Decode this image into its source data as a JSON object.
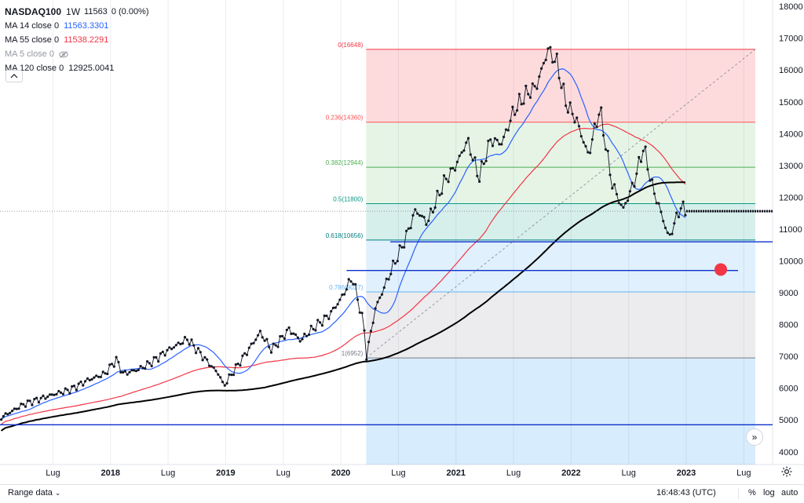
{
  "legend": {
    "symbol": "NASDAQ100",
    "timeframe": "1W",
    "price": "11563",
    "change": "0 (0.00%)",
    "ma": [
      {
        "label": "MA 14 close 0",
        "value": "11563.3301",
        "color": "#2962ff",
        "hidden": false
      },
      {
        "label": "MA 55 close 0",
        "value": "11538.2291",
        "color": "#f23645",
        "hidden": false
      },
      {
        "label": "MA 5 close 0",
        "value": "",
        "color": "#9598a1",
        "hidden": true,
        "icon": "eye-off-icon"
      },
      {
        "label": "MA 120 close 0",
        "value": "12925.0041",
        "color": "#000000",
        "hidden": false
      }
    ]
  },
  "bottom_bar": {
    "range_label": "Range data",
    "clock": "16:48:43 (UTC)",
    "percent_label": "%",
    "log_label": "log",
    "auto_label": "auto"
  },
  "chart_data": {
    "type": "line",
    "timeframe": "1W",
    "x_ticks": [
      "Lug",
      "2018",
      "Lug",
      "2019",
      "Lug",
      "2020",
      "Lug",
      "2021",
      "Lug",
      "2022",
      "Lug",
      "2023",
      "Lug"
    ],
    "x_tick_dates": [
      2017.5,
      2018.0,
      2018.5,
      2019.0,
      2019.5,
      2020.0,
      2020.5,
      2021.0,
      2021.5,
      2022.0,
      2022.5,
      2023.0,
      2023.5
    ],
    "y_ticks": [
      4000,
      5000,
      6000,
      7000,
      8000,
      9000,
      10000,
      11000,
      12000,
      13000,
      14000,
      15000,
      16000,
      17000,
      18000
    ],
    "ylim": [
      3600,
      18200
    ],
    "xlim": [
      2017.04,
      2023.75
    ],
    "price": [
      [
        2017.05,
        5080
      ],
      [
        2017.25,
        5500
      ],
      [
        2017.5,
        5800
      ],
      [
        2017.65,
        5950
      ],
      [
        2017.8,
        6250
      ],
      [
        2017.95,
        6450
      ],
      [
        2018.05,
        6900
      ],
      [
        2018.11,
        6450
      ],
      [
        2018.25,
        6600
      ],
      [
        2018.35,
        6800
      ],
      [
        2018.5,
        7200
      ],
      [
        2018.67,
        7550
      ],
      [
        2018.8,
        7000
      ],
      [
        2018.95,
        6400
      ],
      [
        2018.98,
        6050
      ],
      [
        2019.1,
        6700
      ],
      [
        2019.3,
        7750
      ],
      [
        2019.4,
        7200
      ],
      [
        2019.55,
        7850
      ],
      [
        2019.65,
        7500
      ],
      [
        2019.75,
        7850
      ],
      [
        2019.9,
        8300
      ],
      [
        2020.0,
        8800
      ],
      [
        2020.1,
        9500
      ],
      [
        2020.2,
        8000
      ],
      [
        2020.22,
        6952
      ],
      [
        2020.3,
        8500
      ],
      [
        2020.45,
        9800
      ],
      [
        2020.55,
        10600
      ],
      [
        2020.65,
        11600
      ],
      [
        2020.75,
        11200
      ],
      [
        2020.9,
        12500
      ],
      [
        2021.0,
        13000
      ],
      [
        2021.1,
        13800
      ],
      [
        2021.2,
        12600
      ],
      [
        2021.3,
        13800
      ],
      [
        2021.4,
        13700
      ],
      [
        2021.5,
        14700
      ],
      [
        2021.6,
        15200
      ],
      [
        2021.7,
        15500
      ],
      [
        2021.8,
        16648
      ],
      [
        2021.88,
        16200
      ],
      [
        2021.95,
        15000
      ],
      [
        2022.05,
        14400
      ],
      [
        2022.15,
        13300
      ],
      [
        2022.25,
        14800
      ],
      [
        2022.35,
        12500
      ],
      [
        2022.45,
        11600
      ],
      [
        2022.55,
        12500
      ],
      [
        2022.63,
        13600
      ],
      [
        2022.7,
        12400
      ],
      [
        2022.8,
        11300
      ],
      [
        2022.85,
        10700
      ],
      [
        2022.95,
        11700
      ],
      [
        2023.0,
        11563
      ]
    ],
    "fibonacci": {
      "from": 6952,
      "to": 16648,
      "x_start": 2020.22,
      "x_end": 2023.6,
      "levels": [
        {
          "label": "0(16648)",
          "value": 16648,
          "color": "#f23645",
          "fill": "rgba(242,54,69,0.18)"
        },
        {
          "label": "0.236(14360)",
          "value": 14360,
          "color": "#ff5252",
          "fill": "rgba(76,175,80,0.14)"
        },
        {
          "label": "0.382(12944)",
          "value": 12944,
          "color": "#4caf50",
          "fill": "rgba(76,175,80,0.14)"
        },
        {
          "label": "0.5(11800)",
          "value": 11800,
          "color": "#089981",
          "fill": "rgba(8,153,129,0.16)"
        },
        {
          "label": "0.618(10656)",
          "value": 10656,
          "color": "#008080",
          "fill": "rgba(33,150,243,0.14)"
        },
        {
          "label": "0.786(9027)",
          "value": 9027,
          "color": "#64b5f6",
          "fill": "rgba(149,152,161,0.18)"
        },
        {
          "label": "1(6952)",
          "value": 6952,
          "color": "#787b86",
          "fill": "rgba(33,150,243,0.18)"
        }
      ],
      "extension_bottom": 3600
    },
    "horizontal_lines": [
      {
        "value": 10600,
        "x_start": 2020.43,
        "x_end": 2023.75,
        "color": "#0d2fcc"
      },
      {
        "value": 9700,
        "x_start": 2020.05,
        "x_end": 2023.45,
        "color": "#0d2fcc"
      },
      {
        "value": 4850,
        "x_start": 2017.04,
        "x_end": 2023.75,
        "color": "#0d2fcc"
      }
    ],
    "dashed_current_line": 11563,
    "marker": {
      "x": 2023.3,
      "y": 9730,
      "color": "#f23645"
    }
  }
}
